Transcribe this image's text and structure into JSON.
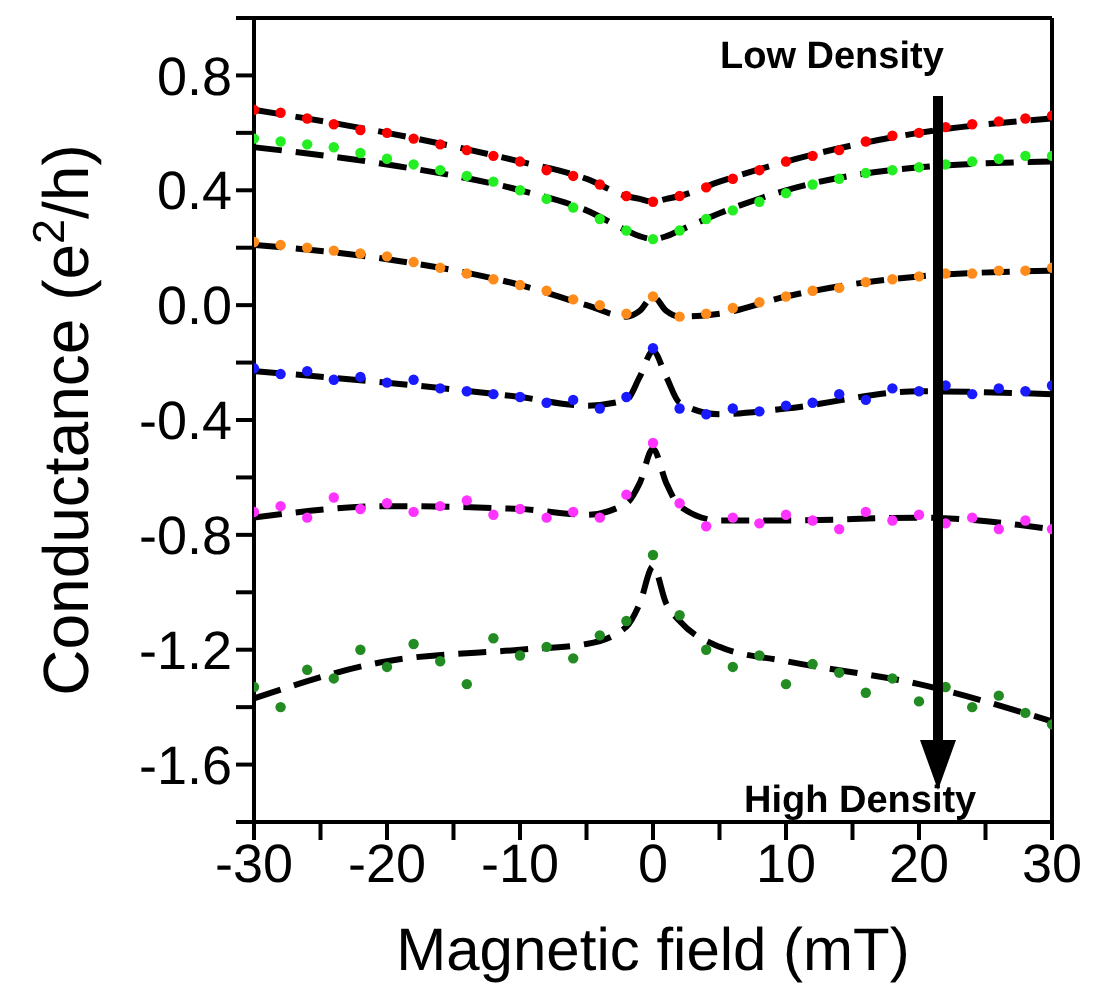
{
  "chart_data": {
    "type": "scatter",
    "xlabel": "Magnetic field (mT)",
    "ylabel": "Conductance (e$^{2}$/h)",
    "annotations": [
      "Low Density",
      "High Density"
    ],
    "x": [
      -30,
      -28,
      -26,
      -24,
      -22,
      -20,
      -18,
      -16,
      -14,
      -12,
      -10,
      -8,
      -6,
      -4,
      -2,
      0,
      2,
      4,
      6,
      8,
      10,
      12,
      14,
      16,
      18,
      20,
      22,
      24,
      26,
      28,
      30
    ],
    "xlim": [
      -30,
      30
    ],
    "xticks": [
      -30,
      {
        "value": -25,
        "label": null
      },
      -20,
      {
        "value": -15,
        "label": null
      },
      -10,
      {
        "value": -5,
        "label": null
      },
      0,
      {
        "value": 5,
        "label": null
      },
      10,
      {
        "value": 15,
        "label": null
      },
      20,
      {
        "value": 25,
        "label": null
      },
      30
    ],
    "ylim": [
      -1.8,
      1.0
    ],
    "yticks": [
      {
        "value": -1.8,
        "label": null
      },
      -1.6,
      {
        "value": -1.4,
        "label": null
      },
      -1.2,
      {
        "value": -1.0,
        "label": null
      },
      -0.8,
      {
        "value": -0.6,
        "label": null
      },
      -0.4,
      {
        "value": -0.2,
        "label": null
      },
      {
        "value": 0,
        "label": "0.0"
      },
      {
        "value": 0.2,
        "label": null
      },
      0.4,
      {
        "value": 0.6,
        "label": null
      },
      0.8,
      {
        "value": 1.0,
        "label": null
      }
    ],
    "grid": false,
    "marker": "circle",
    "series": [
      {
        "color": "#ff0000",
        "values": [
          0.68,
          0.67,
          0.65,
          0.63,
          0.61,
          0.6,
          0.58,
          0.56,
          0.54,
          0.52,
          0.5,
          0.47,
          0.45,
          0.42,
          0.38,
          0.36,
          0.38,
          0.41,
          0.44,
          0.47,
          0.5,
          0.52,
          0.54,
          0.57,
          0.59,
          0.6,
          0.62,
          0.63,
          0.64,
          0.65,
          0.66
        ]
      },
      {
        "color": "#22ee22",
        "values": [
          0.58,
          0.57,
          0.56,
          0.55,
          0.53,
          0.51,
          0.49,
          0.47,
          0.45,
          0.43,
          0.4,
          0.37,
          0.34,
          0.3,
          0.26,
          0.23,
          0.26,
          0.3,
          0.33,
          0.36,
          0.39,
          0.42,
          0.44,
          0.46,
          0.47,
          0.48,
          0.49,
          0.5,
          0.51,
          0.52,
          0.52
        ]
      },
      {
        "color": "#ff8c1a",
        "values": [
          0.22,
          0.21,
          0.2,
          0.19,
          0.18,
          0.17,
          0.15,
          0.13,
          0.11,
          0.09,
          0.07,
          0.05,
          0.02,
          0,
          -0.03,
          0.03,
          -0.04,
          -0.03,
          -0.01,
          0.01,
          0.03,
          0.05,
          0.06,
          0.08,
          0.09,
          0.1,
          0.11,
          0.11,
          0.12,
          0.12,
          0.13
        ]
      },
      {
        "color": "#1a1aff",
        "values": [
          -0.22,
          -0.24,
          -0.23,
          -0.26,
          -0.25,
          -0.27,
          -0.26,
          -0.29,
          -0.3,
          -0.31,
          -0.32,
          -0.34,
          -0.33,
          -0.36,
          -0.32,
          -0.15,
          -0.36,
          -0.38,
          -0.36,
          -0.37,
          -0.35,
          -0.34,
          -0.31,
          -0.33,
          -0.29,
          -0.3,
          -0.28,
          -0.31,
          -0.29,
          -0.3,
          -0.28
        ]
      },
      {
        "color": "#ff33ff",
        "values": [
          -0.72,
          -0.7,
          -0.74,
          -0.67,
          -0.71,
          -0.69,
          -0.72,
          -0.7,
          -0.68,
          -0.73,
          -0.71,
          -0.74,
          -0.72,
          -0.74,
          -0.66,
          -0.48,
          -0.69,
          -0.77,
          -0.74,
          -0.76,
          -0.73,
          -0.75,
          -0.78,
          -0.72,
          -0.75,
          -0.73,
          -0.76,
          -0.74,
          -0.78,
          -0.75,
          -0.78
        ]
      },
      {
        "color": "#228b22",
        "values": [
          -1.33,
          -1.4,
          -1.27,
          -1.3,
          -1.2,
          -1.26,
          -1.18,
          -1.24,
          -1.32,
          -1.16,
          -1.22,
          -1.19,
          -1.23,
          -1.15,
          -1.1,
          -0.87,
          -1.08,
          -1.2,
          -1.26,
          -1.22,
          -1.32,
          -1.25,
          -1.28,
          -1.35,
          -1.3,
          -1.38,
          -1.33,
          -1.4,
          -1.36,
          -1.42,
          -1.46
        ]
      },
      {
        "type": "line",
        "line_style": "dashed",
        "marker": "none",
        "color": "#000000",
        "x": [
          -30,
          -20,
          -10,
          -5,
          -2,
          -1,
          0,
          1,
          2,
          5,
          10,
          20,
          30
        ],
        "values": [
          0.68,
          0.6,
          0.5,
          0.44,
          0.38,
          0.37,
          0.36,
          0.37,
          0.38,
          0.43,
          0.5,
          0.6,
          0.65
        ]
      },
      {
        "type": "line",
        "line_style": "dashed",
        "marker": "none",
        "color": "#000000",
        "x": [
          -30,
          -20,
          -10,
          -5,
          -2,
          -1,
          0,
          1,
          2,
          5,
          10,
          20,
          30
        ],
        "values": [
          0.55,
          0.49,
          0.4,
          0.33,
          0.26,
          0.24,
          0.23,
          0.24,
          0.26,
          0.32,
          0.4,
          0.48,
          0.5
        ]
      },
      {
        "type": "line",
        "line_style": "dashed",
        "marker": "none",
        "color": "#000000",
        "x": [
          -30,
          -20,
          -10,
          -5,
          -2,
          -1,
          0,
          1,
          2,
          5,
          10,
          20,
          30
        ],
        "values": [
          0.21,
          0.16,
          0.07,
          0,
          -0.04,
          -0.02,
          0.03,
          -0.02,
          -0.04,
          -0.03,
          0.03,
          0.1,
          0.12
        ]
      },
      {
        "type": "line",
        "line_style": "dashed",
        "marker": "none",
        "color": "#000000",
        "x": [
          -30,
          -20,
          -10,
          -5,
          -2,
          -1,
          0,
          1,
          2,
          5,
          10,
          20,
          30
        ],
        "values": [
          -0.23,
          -0.27,
          -0.32,
          -0.35,
          -0.33,
          -0.25,
          -0.16,
          -0.25,
          -0.34,
          -0.38,
          -0.36,
          -0.3,
          -0.31
        ]
      },
      {
        "type": "line",
        "line_style": "dashed",
        "marker": "none",
        "color": "#000000",
        "x": [
          -30,
          -20,
          -10,
          -5,
          -2,
          -1,
          0,
          1,
          2,
          5,
          10,
          20,
          30
        ],
        "values": [
          -0.74,
          -0.7,
          -0.71,
          -0.73,
          -0.69,
          -0.62,
          -0.5,
          -0.62,
          -0.7,
          -0.75,
          -0.75,
          -0.74,
          -0.78
        ]
      },
      {
        "type": "line",
        "line_style": "dashed",
        "marker": "none",
        "color": "#000000",
        "x": [
          -30,
          -20,
          -10,
          -5,
          -2,
          -1,
          0,
          1,
          2,
          5,
          10,
          20,
          30
        ],
        "values": [
          -1.37,
          -1.24,
          -1.2,
          -1.18,
          -1.12,
          -1.04,
          -0.91,
          -1.04,
          -1.1,
          -1.19,
          -1.24,
          -1.32,
          -1.45
        ]
      }
    ]
  }
}
